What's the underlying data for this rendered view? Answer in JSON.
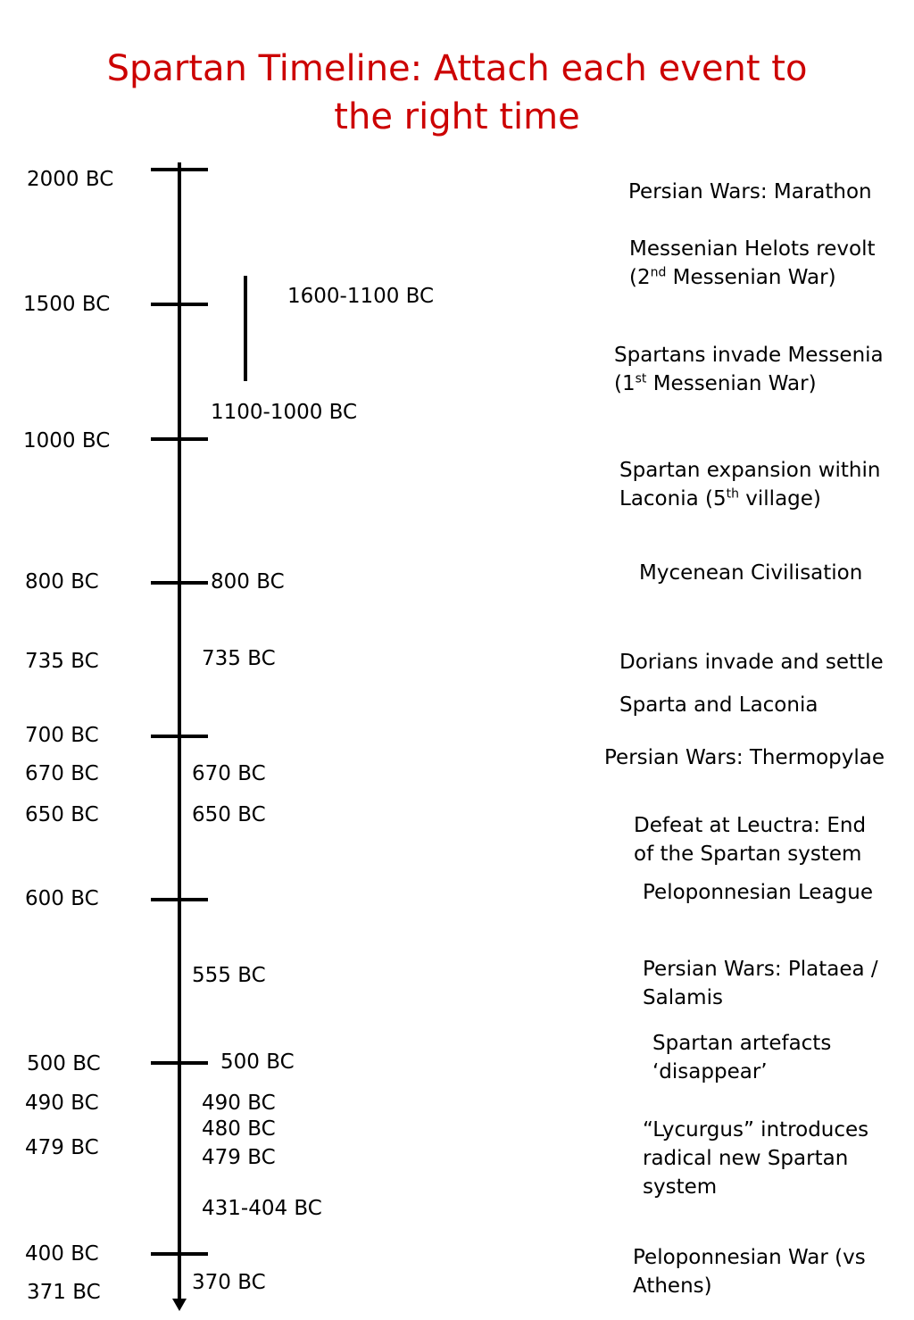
{
  "title_line1": "Spartan Timeline: Attach each event to",
  "title_line2": "the right time",
  "left_dates": {
    "d2000": "2000 BC",
    "d1500": "1500 BC",
    "d1000": "1000 BC",
    "d800": "800 BC",
    "d735": "735 BC",
    "d700": "700 BC",
    "d670": "670 BC",
    "d650": "650 BC",
    "d600": "600 BC",
    "d500": "500 BC",
    "d490": "490 BC",
    "d479": "479 BC",
    "d400": "400 BC",
    "d371": "371 BC"
  },
  "middle_dates": {
    "m1600": "1600-1100 BC",
    "m1100": "1100-1000 BC",
    "m800": "800 BC",
    "m735": "735 BC",
    "m670": "670 BC",
    "m650": "650 BC",
    "m555": "555 BC",
    "m500": "500 BC",
    "m490": "490 BC",
    "m480": "480 BC",
    "m479": "479 BC",
    "m431": "431-404 BC",
    "m370": "370 BC"
  },
  "events": {
    "marathon": "Persian Wars: Marathon",
    "helots_1": "Messenian Helots revolt",
    "helots_2a": "(2",
    "helots_2sup": "nd",
    "helots_2b": " Messenian War)",
    "invade_1": "Spartans invade Messenia",
    "invade_2a": "(1",
    "invade_2sup": "st",
    "invade_2b": " Messenian War)",
    "expansion_1": "Spartan expansion within",
    "expansion_2a": "Laconia (5",
    "expansion_2sup": "th",
    "expansion_2b": " village)",
    "mycenean": "Mycenean Civilisation",
    "dorians_1": "Dorians invade and settle",
    "dorians_2": "Sparta and Laconia",
    "thermopylae": "Persian Wars: Thermopylae",
    "leuctra_1": "Defeat at Leuctra: End",
    "leuctra_2": "of the Spartan system",
    "league": "Peloponnesian League",
    "plataea_1": "Persian Wars: Plataea /",
    "plataea_2": "Salamis",
    "artefacts_1": "Spartan artefacts",
    "artefacts_2": "‘disappear’",
    "lycurgus_1": "“Lycurgus” introduces",
    "lycurgus_2": "radical  new  Spartan",
    "lycurgus_3": "system",
    "pelwar_1": "Peloponnesian War (vs",
    "pelwar_2": "Athens)"
  }
}
